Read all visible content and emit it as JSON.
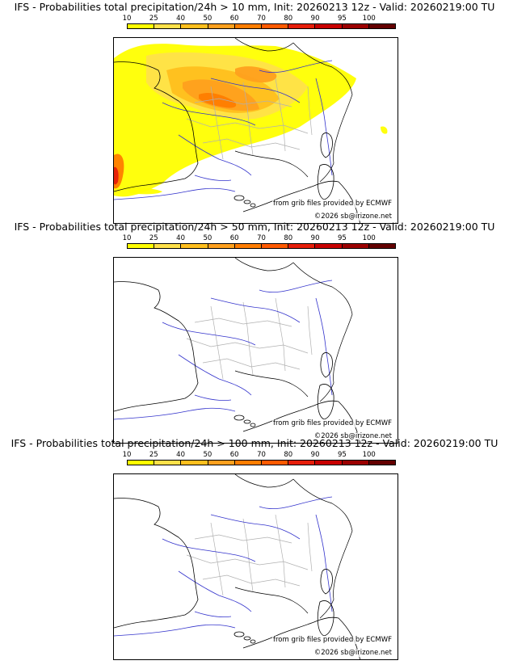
{
  "legend": {
    "ticks": [
      "10",
      "25",
      "40",
      "50",
      "60",
      "70",
      "80",
      "90",
      "95",
      "100"
    ],
    "colors": [
      "#ffff00",
      "#ffe14a",
      "#ffbf1e",
      "#ffa01e",
      "#ff7d00",
      "#ff5a00",
      "#e61e0a",
      "#c80000",
      "#9b0000",
      "#640000"
    ]
  },
  "panels": [
    {
      "title": "IFS - Probabilities total precipitation/24h > 10 mm, Init: 20260213 12z - Valid: 20260219:00 TU",
      "has_precip": true,
      "credit_source": "from grib files provided by ECMWF",
      "credit_copyright": "©2026 sb@irizone.net"
    },
    {
      "title": "IFS - Probabilities total precipitation/24h > 50 mm, Init: 20260213 12z - Valid: 20260219:00 TU",
      "has_precip": false,
      "credit_source": "from grib files provided by ECMWF",
      "credit_copyright": "©2026 sb@irizone.net"
    },
    {
      "title": "IFS - Probabilities total precipitation/24h > 100 mm, Init: 20260213 12z - Valid: 20260219:00 TU",
      "has_precip": false,
      "credit_source": "from grib files provided by ECMWF",
      "credit_copyright": "©2026 sb@irizone.net"
    }
  ]
}
